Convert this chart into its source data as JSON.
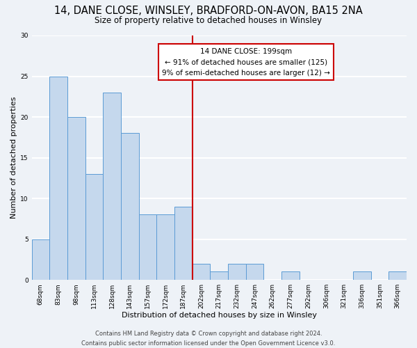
{
  "title": "14, DANE CLOSE, WINSLEY, BRADFORD-ON-AVON, BA15 2NA",
  "subtitle": "Size of property relative to detached houses in Winsley",
  "xlabel": "Distribution of detached houses by size in Winsley",
  "ylabel": "Number of detached properties",
  "bins": [
    "68sqm",
    "83sqm",
    "98sqm",
    "113sqm",
    "128sqm",
    "143sqm",
    "157sqm",
    "172sqm",
    "187sqm",
    "202sqm",
    "217sqm",
    "232sqm",
    "247sqm",
    "262sqm",
    "277sqm",
    "292sqm",
    "306sqm",
    "321sqm",
    "336sqm",
    "351sqm",
    "366sqm"
  ],
  "values": [
    5,
    25,
    20,
    13,
    23,
    18,
    8,
    8,
    9,
    2,
    1,
    2,
    2,
    0,
    1,
    0,
    0,
    0,
    1,
    0,
    1
  ],
  "bar_color": "#c5d8ed",
  "bar_edge_color": "#5b9bd5",
  "property_line_bin_index": 9,
  "annotation_title": "14 DANE CLOSE: 199sqm",
  "annotation_line1": "← 91% of detached houses are smaller (125)",
  "annotation_line2": "9% of semi-detached houses are larger (12) →",
  "annotation_box_color": "#ffffff",
  "annotation_box_edge_color": "#cc0000",
  "property_line_color": "#cc0000",
  "ylim": [
    0,
    30
  ],
  "yticks": [
    0,
    5,
    10,
    15,
    20,
    25,
    30
  ],
  "footer_line1": "Contains HM Land Registry data © Crown copyright and database right 2024.",
  "footer_line2": "Contains public sector information licensed under the Open Government Licence v3.0.",
  "bg_color": "#eef2f7",
  "grid_color": "#ffffff",
  "title_fontsize": 10.5,
  "subtitle_fontsize": 8.5,
  "label_fontsize": 8,
  "tick_fontsize": 6.5,
  "footer_fontsize": 6,
  "ann_fontsize": 7.5
}
